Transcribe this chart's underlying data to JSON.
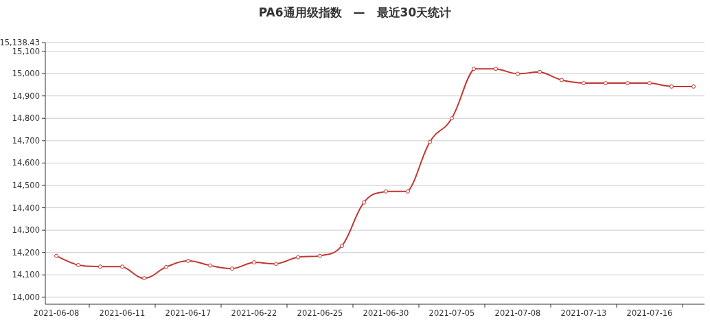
{
  "chart_data": {
    "type": "line",
    "title": "PA6通用级指数　—　最近30天统计",
    "categories": [
      "2021-06-08",
      null,
      null,
      "2021-06-11",
      null,
      null,
      "2021-06-17",
      null,
      null,
      "2021-06-22",
      null,
      null,
      "2021-06-25",
      null,
      null,
      "2021-06-30",
      null,
      null,
      "2021-07-05",
      null,
      null,
      "2021-07-08",
      null,
      null,
      "2021-07-13",
      null,
      null,
      "2021-07-16",
      null,
      null
    ],
    "series": [
      {
        "color": "#c23531",
        "values": [
          14185,
          14144,
          14137,
          14137,
          14085,
          14135,
          14163,
          14142,
          14128,
          14156,
          14149,
          14179,
          14185,
          14230,
          14424,
          14473,
          14473,
          14694,
          14800,
          15021,
          15021,
          14999,
          15007,
          14971,
          14957,
          14957,
          14957,
          14957,
          14942,
          14942
        ]
      }
    ],
    "ylim": [
      13969,
      15138.43
    ],
    "yticks": [
      {
        "value": 14000,
        "label": "14,000"
      },
      {
        "value": 14100,
        "label": "14,100"
      },
      {
        "value": 14200,
        "label": "14,200"
      },
      {
        "value": 14300,
        "label": "14,300"
      },
      {
        "value": 14400,
        "label": "14,400"
      },
      {
        "value": 14500,
        "label": "14,500"
      },
      {
        "value": 14600,
        "label": "14,600"
      },
      {
        "value": 14700,
        "label": "14,700"
      },
      {
        "value": 14800,
        "label": "14,800"
      },
      {
        "value": 14900,
        "label": "14,900"
      },
      {
        "value": 15000,
        "label": "15,000"
      },
      {
        "value": 15100,
        "label": "15,100"
      },
      {
        "value": 15138.43,
        "label": "15,138.43"
      }
    ],
    "grid": "y",
    "marker": "circle",
    "line_style": "solid"
  }
}
